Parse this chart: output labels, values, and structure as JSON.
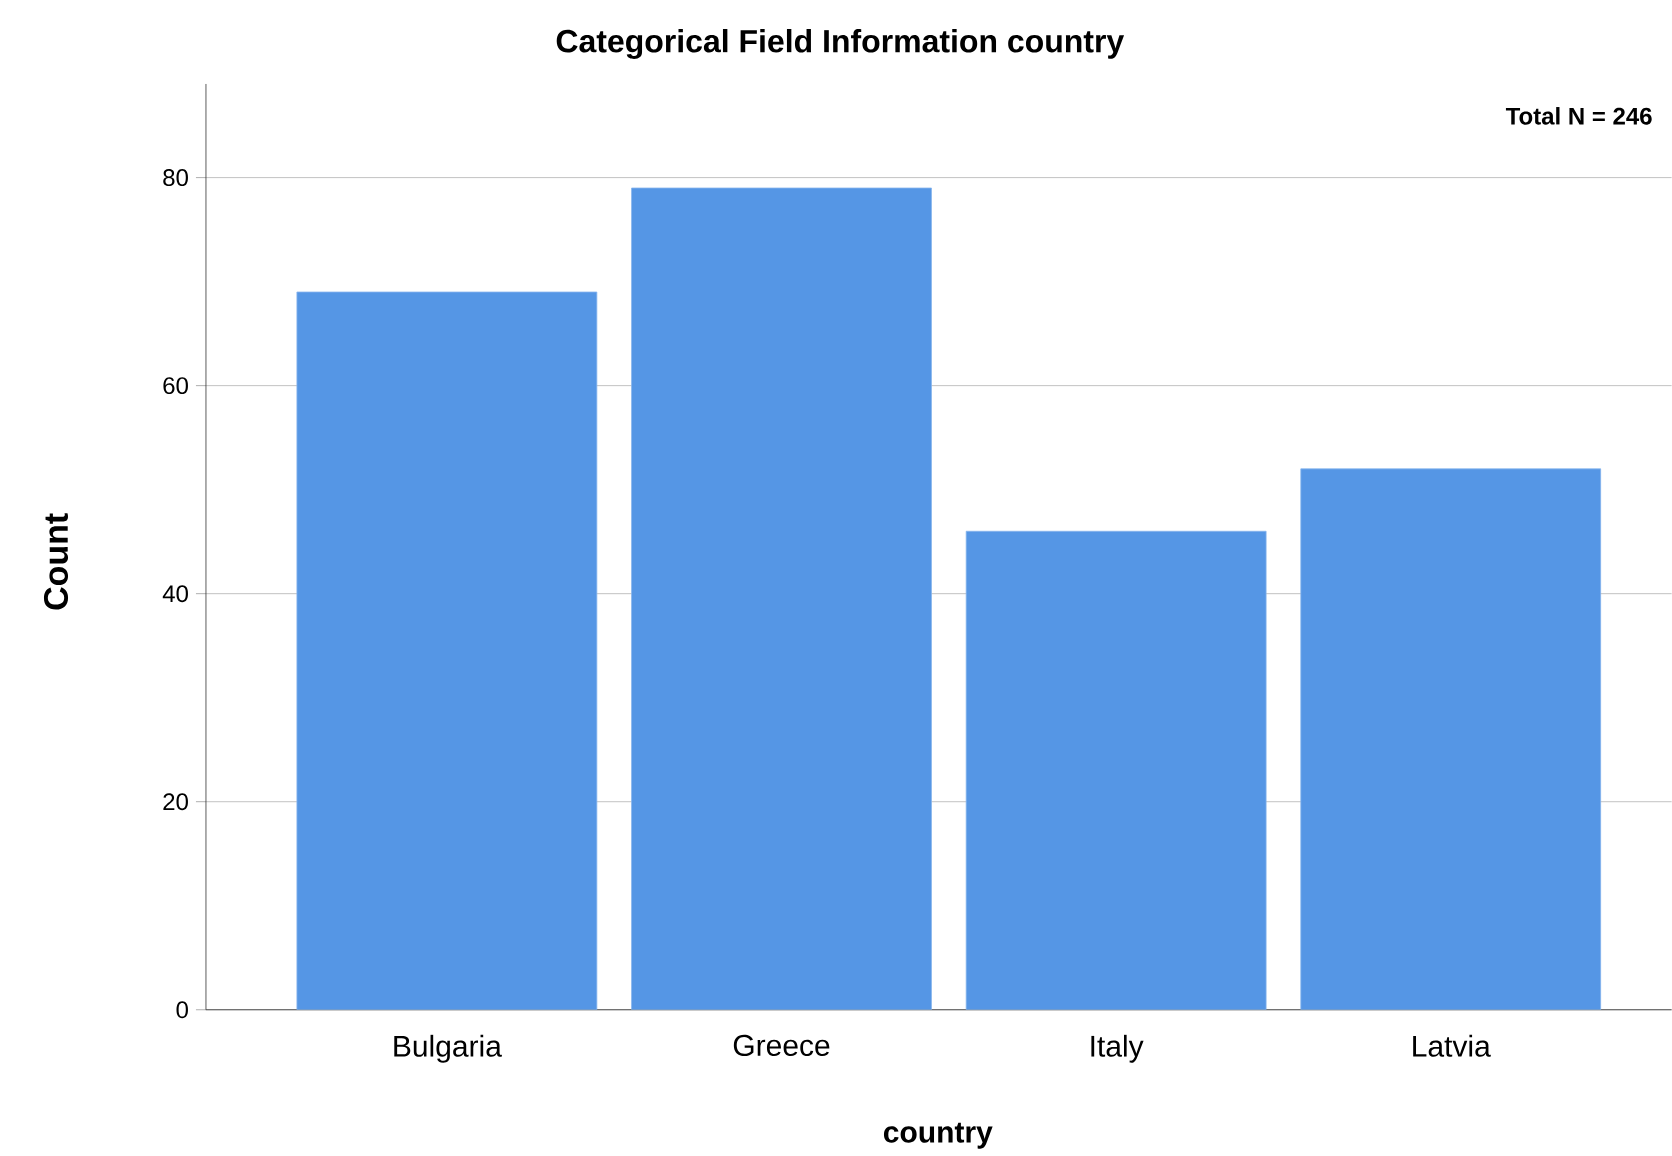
{
  "chart_data": {
    "type": "bar",
    "title": "Categorical Field Information country",
    "xlabel": "country",
    "ylabel": "Count",
    "categories": [
      "Bulgaria",
      "Greece",
      "Italy",
      "Latvia"
    ],
    "values": [
      69,
      79,
      46,
      52
    ],
    "color": "#5596e5",
    "ylim": [
      0,
      89
    ],
    "yticks": [
      0,
      20,
      40,
      60,
      80
    ],
    "grid": "y",
    "annotations": [
      "Total N =  246"
    ]
  }
}
